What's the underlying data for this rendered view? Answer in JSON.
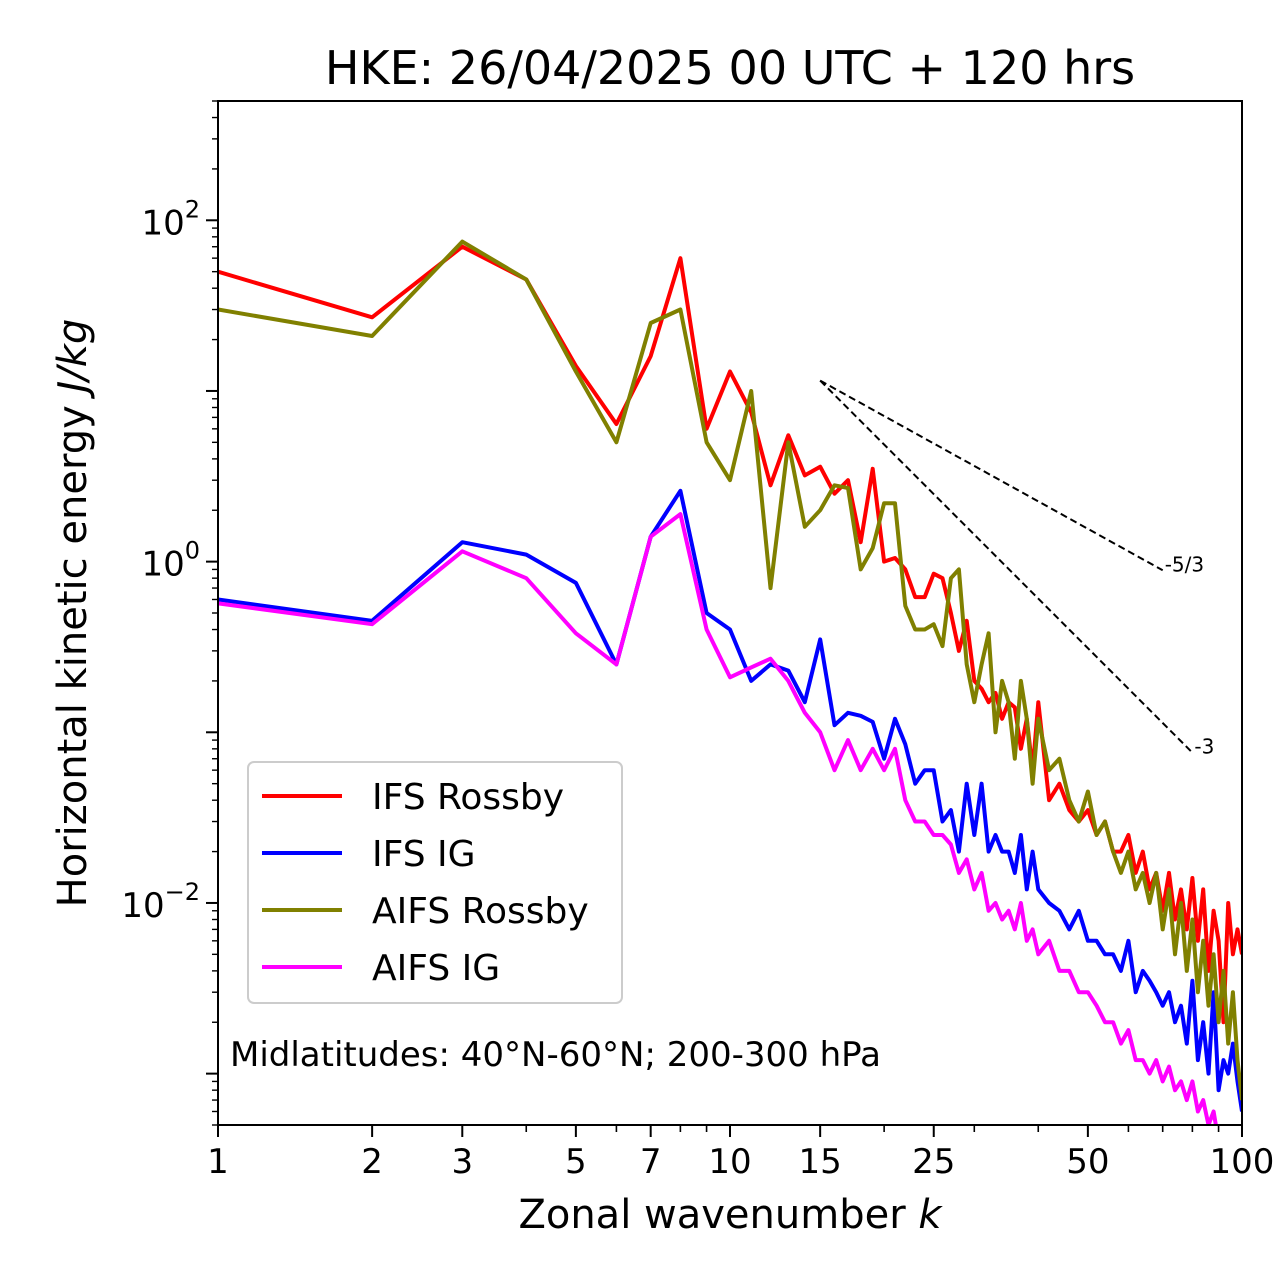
{
  "chart_data": {
    "type": "line",
    "title": "HKE: 26/04/2025 00 UTC + 120 hrs",
    "xlabel": "Zonal wavenumber",
    "xlabel_var": "k",
    "ylabel": "Horizontal kinetic energy",
    "ylabel_unit": "J/kg",
    "x_scale": "log",
    "y_scale": "log",
    "xlim": [
      1,
      100
    ],
    "ylim": [
      0.0005,
      500
    ],
    "x_ticks": [
      1,
      2,
      3,
      5,
      7,
      10,
      15,
      25,
      50,
      100
    ],
    "x_tick_labels": [
      "1",
      "2",
      "3",
      "5",
      "7",
      "10",
      "15",
      "25",
      "50",
      "100"
    ],
    "y_ticks": [
      {
        "value": 100,
        "base": "10",
        "exp": "2"
      },
      {
        "value": 1,
        "base": "10",
        "exp": "0"
      },
      {
        "value": 0.01,
        "base": "10",
        "exp": "−2"
      }
    ],
    "grid": false,
    "legend_position": "lower-left",
    "annotation": "Midlatitudes: 40°N-60°N; 200-300 hPa",
    "reference_lines": [
      {
        "label": "-5/3",
        "slope": -1.6667,
        "x": [
          15,
          70
        ],
        "y": [
          11.5,
          0.89
        ]
      },
      {
        "label": "-3",
        "slope": -3,
        "x": [
          15,
          80
        ],
        "y": [
          11.5,
          0.076
        ]
      }
    ],
    "series": [
      {
        "name": "IFS Rossby",
        "color": "#ff0000",
        "x": [
          1,
          2,
          3,
          4,
          5,
          6,
          7,
          8,
          9,
          10,
          11,
          12,
          13,
          14,
          15,
          16,
          17,
          18,
          19,
          20,
          21,
          22,
          23,
          24,
          25,
          26,
          27,
          28,
          29,
          30,
          31,
          32,
          33,
          34,
          35,
          36,
          37,
          38,
          39,
          40,
          42,
          44,
          46,
          48,
          50,
          52,
          54,
          56,
          58,
          60,
          62,
          64,
          66,
          68,
          70,
          72,
          74,
          76,
          78,
          80,
          82,
          84,
          86,
          88,
          90,
          92,
          94,
          96,
          98,
          100
        ],
        "y": [
          50,
          27,
          70,
          45,
          14,
          6.4,
          16,
          60,
          6,
          13,
          7.5,
          2.8,
          5.5,
          3.2,
          3.6,
          2.5,
          3,
          1.3,
          3.5,
          1.0,
          1.05,
          0.9,
          0.62,
          0.62,
          0.85,
          0.8,
          0.5,
          0.3,
          0.45,
          0.2,
          0.18,
          0.15,
          0.17,
          0.12,
          0.15,
          0.14,
          0.08,
          0.12,
          0.06,
          0.15,
          0.04,
          0.05,
          0.035,
          0.03,
          0.035,
          0.025,
          0.03,
          0.02,
          0.02,
          0.025,
          0.015,
          0.02,
          0.012,
          0.015,
          0.009,
          0.015,
          0.008,
          0.012,
          0.007,
          0.014,
          0.006,
          0.012,
          0.004,
          0.009,
          0.006,
          0.002,
          0.01,
          0.005,
          0.007,
          0.005
        ]
      },
      {
        "name": "IFS IG",
        "color": "#0000ff",
        "x": [
          1,
          2,
          3,
          4,
          5,
          6,
          7,
          8,
          9,
          10,
          11,
          12,
          13,
          14,
          15,
          16,
          17,
          18,
          19,
          20,
          21,
          22,
          23,
          24,
          25,
          26,
          27,
          28,
          29,
          30,
          31,
          32,
          33,
          34,
          35,
          36,
          37,
          38,
          39,
          40,
          42,
          44,
          46,
          48,
          50,
          52,
          54,
          56,
          58,
          60,
          62,
          64,
          66,
          68,
          70,
          72,
          74,
          76,
          78,
          80,
          82,
          84,
          86,
          88,
          90,
          92,
          94,
          96,
          98,
          100
        ],
        "y": [
          0.6,
          0.45,
          1.3,
          1.1,
          0.75,
          0.25,
          1.4,
          2.6,
          0.5,
          0.4,
          0.2,
          0.25,
          0.23,
          0.15,
          0.35,
          0.11,
          0.13,
          0.125,
          0.115,
          0.07,
          0.12,
          0.085,
          0.05,
          0.06,
          0.06,
          0.03,
          0.035,
          0.02,
          0.05,
          0.025,
          0.05,
          0.02,
          0.025,
          0.02,
          0.02,
          0.015,
          0.025,
          0.012,
          0.02,
          0.012,
          0.01,
          0.009,
          0.007,
          0.009,
          0.006,
          0.006,
          0.005,
          0.005,
          0.004,
          0.006,
          0.003,
          0.004,
          0.0035,
          0.003,
          0.0025,
          0.003,
          0.002,
          0.0025,
          0.0015,
          0.0035,
          0.0012,
          0.002,
          0.001,
          0.003,
          0.0008,
          0.0012,
          0.001,
          0.0015,
          0.0009,
          0.0006
        ]
      },
      {
        "name": "AIFS Rossby",
        "color": "#808000",
        "x": [
          1,
          2,
          3,
          4,
          5,
          6,
          7,
          8,
          9,
          10,
          11,
          12,
          13,
          14,
          15,
          16,
          17,
          18,
          19,
          20,
          21,
          22,
          23,
          24,
          25,
          26,
          27,
          28,
          29,
          30,
          31,
          32,
          33,
          34,
          35,
          36,
          37,
          38,
          39,
          40,
          42,
          44,
          46,
          48,
          50,
          52,
          54,
          56,
          58,
          60,
          62,
          64,
          66,
          68,
          70,
          72,
          74,
          76,
          78,
          80,
          82,
          84,
          86,
          88,
          90,
          92,
          94,
          96,
          98,
          100
        ],
        "y": [
          30,
          21,
          75,
          45,
          13,
          5,
          25,
          30,
          5,
          3,
          10,
          0.7,
          5,
          1.6,
          2,
          2.8,
          2.7,
          0.9,
          1.2,
          2.2,
          2.2,
          0.55,
          0.4,
          0.4,
          0.43,
          0.32,
          0.8,
          0.9,
          0.25,
          0.15,
          0.25,
          0.38,
          0.1,
          0.2,
          0.15,
          0.07,
          0.2,
          0.12,
          0.05,
          0.12,
          0.06,
          0.07,
          0.04,
          0.03,
          0.045,
          0.025,
          0.03,
          0.02,
          0.015,
          0.02,
          0.012,
          0.015,
          0.01,
          0.015,
          0.007,
          0.012,
          0.005,
          0.01,
          0.004,
          0.008,
          0.003,
          0.006,
          0.0025,
          0.005,
          0.002,
          0.004,
          0.0015,
          0.003,
          0.0012,
          0.0007
        ]
      },
      {
        "name": "AIFS IG",
        "color": "#ff00ff",
        "x": [
          1,
          2,
          3,
          4,
          5,
          6,
          7,
          8,
          9,
          10,
          11,
          12,
          13,
          14,
          15,
          16,
          17,
          18,
          19,
          20,
          21,
          22,
          23,
          24,
          25,
          26,
          27,
          28,
          29,
          30,
          31,
          32,
          33,
          34,
          35,
          36,
          37,
          38,
          39,
          40,
          42,
          44,
          46,
          48,
          50,
          52,
          54,
          56,
          58,
          60,
          62,
          64,
          66,
          68,
          70,
          72,
          74,
          76,
          78,
          80,
          82,
          84,
          86,
          88,
          90
        ],
        "y": [
          0.57,
          0.43,
          1.15,
          0.8,
          0.38,
          0.25,
          1.4,
          1.9,
          0.4,
          0.21,
          0.24,
          0.27,
          0.2,
          0.13,
          0.1,
          0.06,
          0.09,
          0.06,
          0.08,
          0.06,
          0.08,
          0.04,
          0.03,
          0.03,
          0.025,
          0.025,
          0.022,
          0.015,
          0.018,
          0.012,
          0.015,
          0.009,
          0.01,
          0.008,
          0.009,
          0.007,
          0.01,
          0.006,
          0.007,
          0.005,
          0.006,
          0.004,
          0.004,
          0.003,
          0.003,
          0.0025,
          0.002,
          0.002,
          0.0015,
          0.0018,
          0.0012,
          0.0012,
          0.001,
          0.0012,
          0.0009,
          0.0011,
          0.0008,
          0.0009,
          0.0007,
          0.0009,
          0.0006,
          0.0007,
          0.0005,
          0.0006,
          0.0004
        ]
      }
    ]
  }
}
